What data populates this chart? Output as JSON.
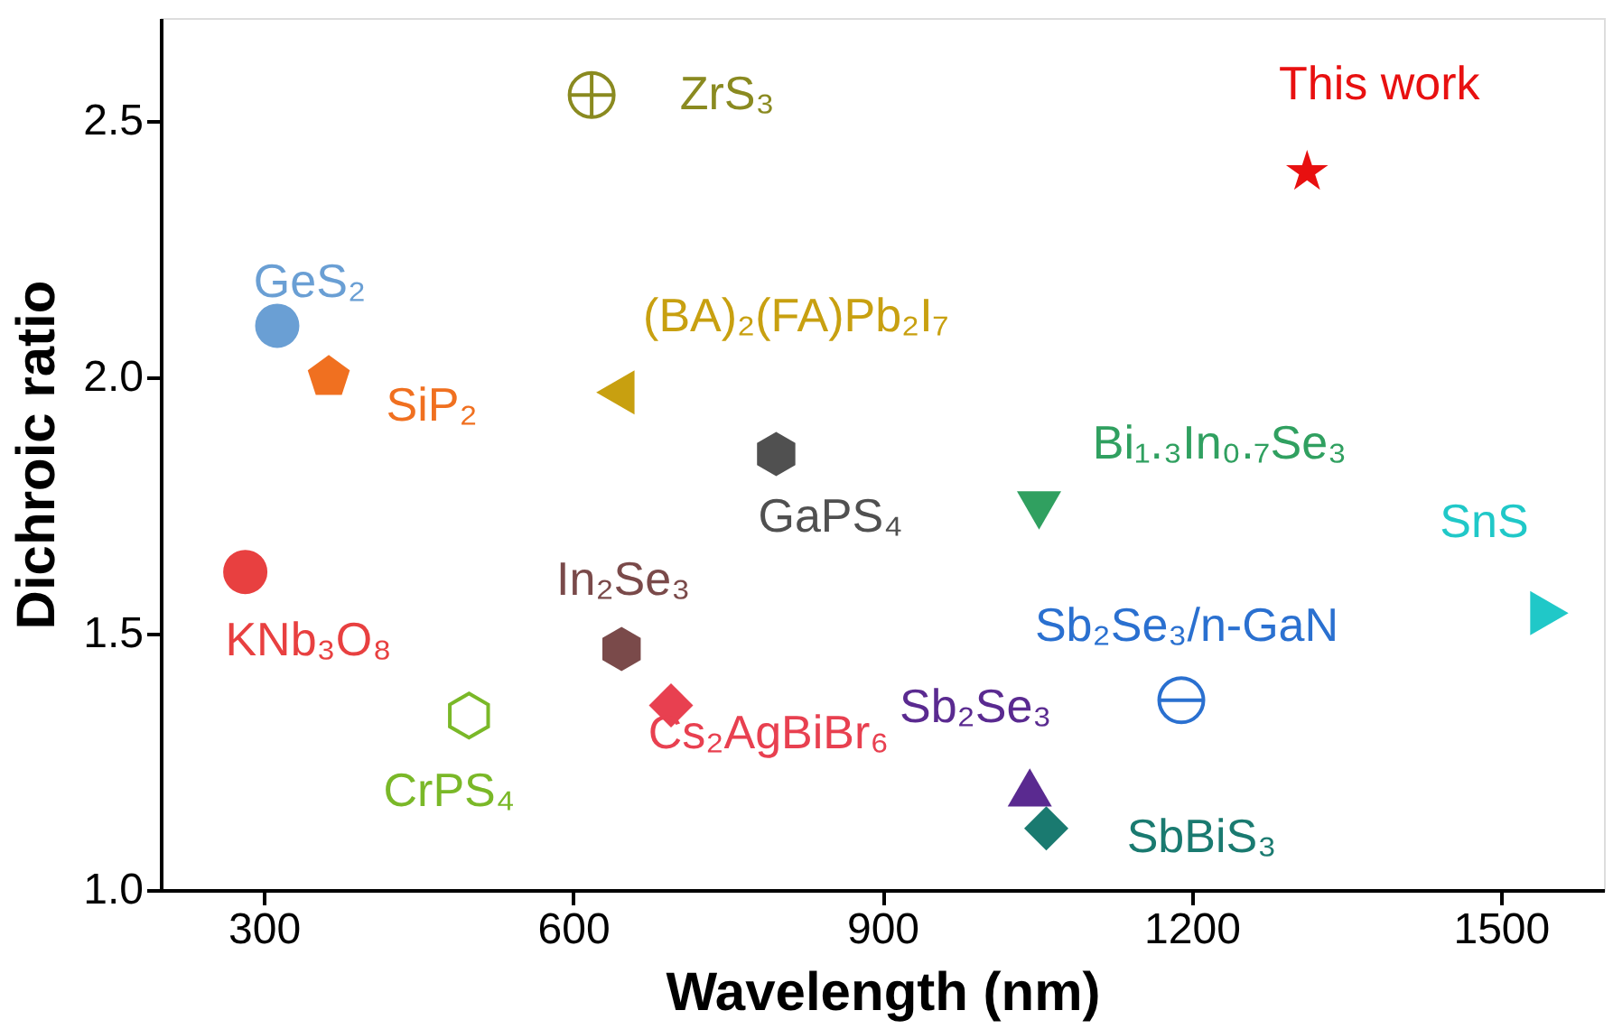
{
  "chart_data": {
    "type": "scatter",
    "xlabel": "Wavelength (nm)",
    "ylabel": "Dichroic ratio",
    "xlim": [
      200,
      1600
    ],
    "ylim": [
      1.0,
      2.7
    ],
    "xticks": [
      300,
      600,
      900,
      {
        "value": 1200,
        "label": "1200"
      },
      {
        "value": 1500,
        "label": "1500"
      }
    ],
    "yticks": [
      {
        "value": 1.0,
        "label": "1.0"
      },
      1.5,
      {
        "value": 2.0,
        "label": "2.0"
      },
      2.5
    ],
    "grid": false,
    "series": [
      {
        "name": "GeS₂",
        "color": "#6a9fd4",
        "marker": "circle",
        "x": [
          313
        ],
        "values": [
          2.1
        ]
      },
      {
        "name": "SiP₂",
        "color": "#f07020",
        "x": [
          363
        ],
        "values": [
          2.0
        ]
      },
      {
        "name": "KNb₃O₈",
        "color": "#e84040",
        "marker": "circle",
        "x": [
          282
        ],
        "values": [
          1.62
        ]
      },
      {
        "name": "CrPS₄",
        "color": "#7ab828",
        "x": [
          499
        ],
        "values": [
          1.34
        ]
      },
      {
        "name": "ZrS₃",
        "color": "#8a8a20",
        "x": [
          618
        ],
        "values": [
          2.55
        ]
      },
      {
        "name": "(BA)₂(FA)Pb₂I₇",
        "color": "#c8a010",
        "marker": "triangle",
        "x": [
          641
        ],
        "values": [
          1.97
        ]
      },
      {
        "name": "In₂Se₃",
        "color": "#7a4a4a",
        "x": [
          647
        ],
        "values": [
          1.47
        ]
      },
      {
        "name": "Cs₂AgBiBr₆",
        "color": "#e84050",
        "marker": "diamond",
        "x": [
          695
        ],
        "values": [
          1.36
        ]
      },
      {
        "name": "GaPS₄",
        "color": "#505050",
        "x": [
          797
        ],
        "values": [
          1.85
        ]
      },
      {
        "name": "Bi₁.₃In₀.₇Se₃",
        "color": "#30a060",
        "marker": "triangle",
        "x": [
          1052
        ],
        "values": [
          1.74
        ]
      },
      {
        "name": "Sb₂Se₃/n-GaN",
        "color": "#2a70d0",
        "x": [
          1190
        ],
        "values": [
          1.37
        ]
      },
      {
        "name": "Sb₂Se₃",
        "color": "#5a2a90",
        "marker": "triangle",
        "x": [
          1043
        ],
        "values": [
          1.2
        ]
      },
      {
        "name": "SbBiS₃",
        "color": "#1a7a70",
        "marker": "diamond",
        "x": [
          1059
        ],
        "values": [
          1.12
        ]
      },
      {
        "name": "SnS",
        "color": "#20c8c8",
        "marker": "triangle",
        "x": [
          1547
        ],
        "values": [
          1.54
        ]
      },
      {
        "name": "This work",
        "color": "#e81010",
        "marker": "star",
        "x": [
          1312
        ],
        "values": [
          2.4
        ]
      }
    ]
  }
}
